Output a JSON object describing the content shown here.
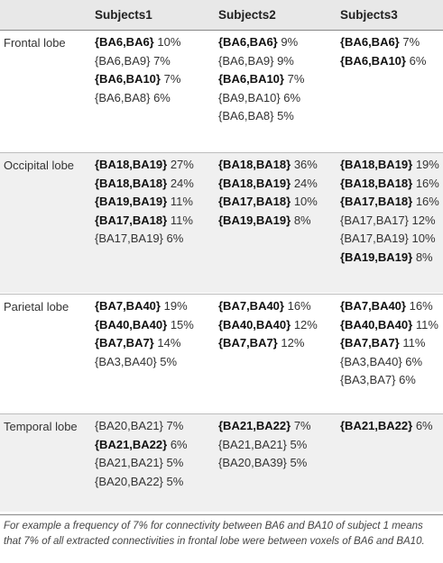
{
  "table": {
    "headers": [
      "",
      "Subjects1",
      "Subjects2",
      "Subjects3"
    ],
    "sections": [
      {
        "label": "Frontal lobe",
        "cells": [
          [
            {
              "pair": "{BA6,BA6}",
              "value": "10%",
              "bold": true
            },
            {
              "pair": "{BA6,BA9}",
              "value": "7%",
              "bold": false
            },
            {
              "pair": "{BA6,BA10}",
              "value": "7%",
              "bold": true
            },
            {
              "pair": "{BA6,BA8}",
              "value": "6%",
              "bold": false
            }
          ],
          [
            {
              "pair": "{BA6,BA6}",
              "value": "9%",
              "bold": true
            },
            {
              "pair": "{BA6,BA9}",
              "value": "9%",
              "bold": false
            },
            {
              "pair": "{BA6,BA10}",
              "value": "7%",
              "bold": true
            },
            {
              "pair": "{BA9,BA10}",
              "value": "6%",
              "bold": false
            },
            {
              "pair": "{BA6,BA8}",
              "value": "5%",
              "bold": false
            }
          ],
          [
            {
              "pair": "{BA6,BA6}",
              "value": "7%",
              "bold": true
            },
            {
              "pair": "{BA6,BA10}",
              "value": "6%",
              "bold": true
            }
          ]
        ]
      },
      {
        "label": "Occipital lobe",
        "cells": [
          [
            {
              "pair": "{BA18,BA19}",
              "value": "27%",
              "bold": true
            },
            {
              "pair": "{BA18,BA18}",
              "value": "24%",
              "bold": true
            },
            {
              "pair": "{BA19,BA19}",
              "value": "11%",
              "bold": true
            },
            {
              "pair": "{BA17,BA18}",
              "value": "11%",
              "bold": true
            },
            {
              "pair": "{BA17,BA19}",
              "value": "6%",
              "bold": false
            }
          ],
          [
            {
              "pair": "{BA18,BA18}",
              "value": "36%",
              "bold": true
            },
            {
              "pair": "{BA18,BA19}",
              "value": "24%",
              "bold": true
            },
            {
              "pair": "{BA17,BA18}",
              "value": "10%",
              "bold": true
            },
            {
              "pair": "{BA19,BA19}",
              "value": "8%",
              "bold": true
            }
          ],
          [
            {
              "pair": "{BA18,BA19}",
              "value": "19%",
              "bold": true
            },
            {
              "pair": "{BA18,BA18}",
              "value": "16%",
              "bold": true
            },
            {
              "pair": "{BA17,BA18}",
              "value": "16%",
              "bold": true
            },
            {
              "pair": "{BA17,BA17}",
              "value": "12%",
              "bold": false
            },
            {
              "pair": "{BA17,BA19}",
              "value": "10%",
              "bold": false
            },
            {
              "pair": "{BA19,BA19}",
              "value": "8%",
              "bold": true
            }
          ]
        ]
      },
      {
        "label": "Parietal lobe",
        "cells": [
          [
            {
              "pair": "{BA7,BA40}",
              "value": "19%",
              "bold": true
            },
            {
              "pair": "{BA40,BA40}",
              "value": "15%",
              "bold": true
            },
            {
              "pair": "{BA7,BA7}",
              "value": "14%",
              "bold": true
            },
            {
              "pair": "{BA3,BA40}",
              "value": "5%",
              "bold": false
            }
          ],
          [
            {
              "pair": "{BA7,BA40}",
              "value": "16%",
              "bold": true
            },
            {
              "pair": "{BA40,BA40}",
              "value": "12%",
              "bold": true
            },
            {
              "pair": "{BA7,BA7}",
              "value": "12%",
              "bold": true
            }
          ],
          [
            {
              "pair": "{BA7,BA40}",
              "value": "16%",
              "bold": true
            },
            {
              "pair": "{BA40,BA40}",
              "value": "11%",
              "bold": true
            },
            {
              "pair": "{BA7,BA7}",
              "value": "11%",
              "bold": true
            },
            {
              "pair": "{BA3,BA40}",
              "value": "6%",
              "bold": false
            },
            {
              "pair": "{BA3,BA7}",
              "value": "6%",
              "bold": false
            }
          ]
        ]
      },
      {
        "label": "Temporal lobe",
        "cells": [
          [
            {
              "pair": "{BA20,BA21}",
              "value": "7%",
              "bold": false
            },
            {
              "pair": "{BA21,BA22}",
              "value": "6%",
              "bold": true
            },
            {
              "pair": "{BA21,BA21}",
              "value": "5%",
              "bold": false
            },
            {
              "pair": "{BA20,BA22}",
              "value": "5%",
              "bold": false
            }
          ],
          [
            {
              "pair": "{BA21,BA22}",
              "value": "7%",
              "bold": true
            },
            {
              "pair": "{BA21,BA21}",
              "value": "5%",
              "bold": false
            },
            {
              "pair": "{BA20,BA39}",
              "value": "5%",
              "bold": false
            }
          ],
          [
            {
              "pair": "{BA21,BA22}",
              "value": "6%",
              "bold": true
            }
          ]
        ]
      }
    ]
  },
  "footnote": "For example a frequency of 7% for connectivity between BA6 and BA10 of subject 1 means that 7% of all extracted connectivities in frontal lobe were between voxels of BA6 and BA10."
}
